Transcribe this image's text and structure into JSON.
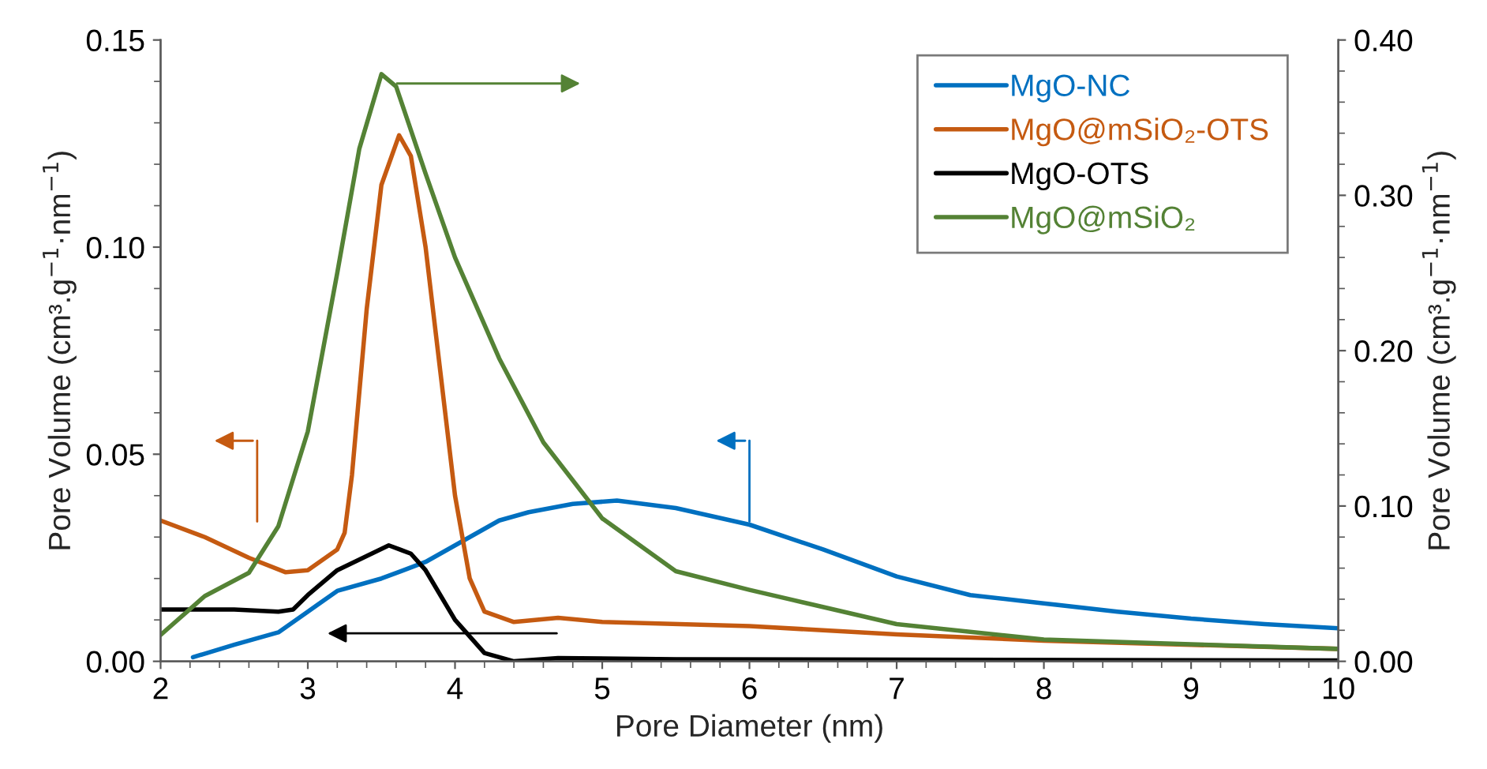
{
  "chart_data": {
    "type": "line",
    "xlabel": "Pore Diameter (nm)",
    "ylabel": "Pore Volume (cm³.g$^{−1}$·nm$^{−1}$)",
    "y2label": "Pore Volume (cm³.g$^{−1}$·nm$^{−1}$)",
    "xlim": [
      2,
      10
    ],
    "xticks": [
      2,
      3,
      4,
      5,
      6,
      7,
      8,
      9,
      10
    ],
    "ylim": [
      0,
      0.15
    ],
    "yticks": [
      {
        "value": 0,
        "label": "0.00"
      },
      {
        "value": 0.05,
        "label": "0.05"
      },
      {
        "value": 0.1,
        "label": "0.10"
      },
      {
        "value": 0.15,
        "label": "0.15"
      }
    ],
    "y2lim": [
      0,
      0.4
    ],
    "y2ticks": [
      {
        "value": 0,
        "label": "0.00"
      },
      {
        "value": 0.1,
        "label": "0.10"
      },
      {
        "value": 0.2,
        "label": "0.20"
      },
      {
        "value": 0.3,
        "label": "0.30"
      },
      {
        "value": 0.4,
        "label": "0.40"
      }
    ],
    "grid": false,
    "legend": "top right",
    "marker": "none",
    "line_style": "solid",
    "series": [
      {
        "name": "MgO-NC",
        "color": "#0070c0",
        "x": [
          2.22,
          2.5,
          2.8,
          3.0,
          3.2,
          3.5,
          3.8,
          4.0,
          4.3,
          4.5,
          4.8,
          5.1,
          5.5,
          6.0,
          6.5,
          7.0,
          7.5,
          8.0,
          8.5,
          9.0,
          9.5,
          10.0
        ],
        "values": [
          0.001,
          0.004,
          0.007,
          0.012,
          0.017,
          0.02,
          0.024,
          0.028,
          0.034,
          0.036,
          0.038,
          0.0388,
          0.037,
          0.033,
          0.027,
          0.0205,
          0.016,
          0.014,
          0.012,
          0.0103,
          0.009,
          0.008
        ]
      },
      {
        "name": "MgO@mSiO₂-OTS",
        "color": "#c55a11",
        "x": [
          2.0,
          2.3,
          2.6,
          2.85,
          3.0,
          3.2,
          3.25,
          3.3,
          3.4,
          3.5,
          3.62,
          3.7,
          3.8,
          3.9,
          4.0,
          4.1,
          4.2,
          4.4,
          4.7,
          5.0,
          6.0,
          7.0,
          8.0,
          9.0,
          10.0
        ],
        "values": [
          0.034,
          0.03,
          0.025,
          0.0215,
          0.022,
          0.027,
          0.031,
          0.045,
          0.085,
          0.115,
          0.127,
          0.122,
          0.1,
          0.07,
          0.04,
          0.02,
          0.012,
          0.0095,
          0.0105,
          0.0095,
          0.0085,
          0.0065,
          0.005,
          0.004,
          0.003
        ]
      },
      {
        "name": "MgO-OTS",
        "color": "#000000",
        "x": [
          2.0,
          2.5,
          2.8,
          2.9,
          3.0,
          3.2,
          3.55,
          3.7,
          3.8,
          4.0,
          4.2,
          4.4,
          4.7,
          5.5,
          10.0
        ],
        "values": [
          0.0125,
          0.0125,
          0.012,
          0.0125,
          0.016,
          0.022,
          0.028,
          0.026,
          0.022,
          0.01,
          0.002,
          0.0,
          0.0008,
          0.0005,
          0.0002
        ]
      },
      {
        "name": "MgO@mSiO₂",
        "color": "#548235",
        "axis": "y2",
        "x": [
          2.0,
          2.3,
          2.6,
          2.8,
          3.0,
          3.2,
          3.35,
          3.5,
          3.6,
          3.8,
          4.0,
          4.3,
          4.6,
          5.0,
          5.5,
          6.0,
          7.0,
          8.0,
          9.0,
          10.0
        ],
        "values": [
          0.017,
          0.042,
          0.057,
          0.087,
          0.148,
          0.25,
          0.33,
          0.378,
          0.37,
          0.314,
          0.26,
          0.195,
          0.141,
          0.092,
          0.058,
          0.046,
          0.024,
          0.014,
          0.011,
          0.008
        ]
      }
    ]
  }
}
